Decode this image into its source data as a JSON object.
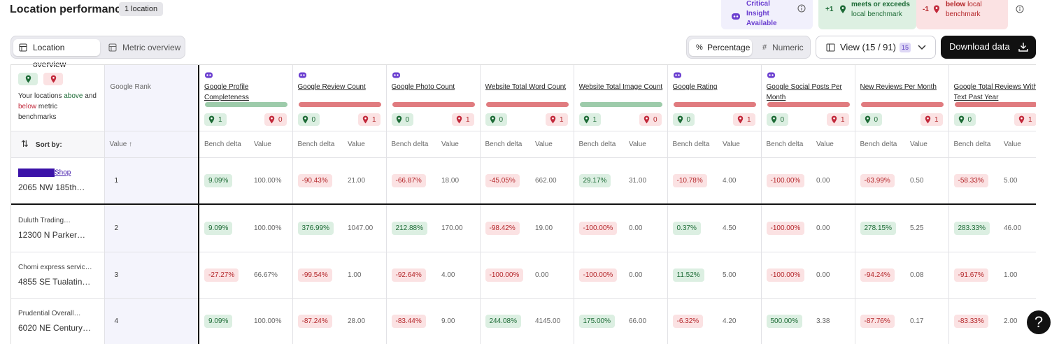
{
  "header": {
    "title": "Location performance",
    "badge": "1 location"
  },
  "legend": {
    "insight": "Critical Insight Available",
    "above": {
      "count": "+1",
      "strong": "Value/location meets or exceeds",
      "light": "local benchmark"
    },
    "below": {
      "count": "-1",
      "strong": "Value/location is below",
      "light": "local benchmark"
    }
  },
  "toolbar": {
    "tabs": [
      "Location overview",
      "Metric overview"
    ],
    "modes": [
      "Percentage",
      "Numeric"
    ],
    "view": "View (15 / 91)",
    "view_badge": "15",
    "download": "Download data"
  },
  "table": {
    "locations_header": {
      "start": "Your locations",
      "above": "above",
      "and": "and",
      "below": "below",
      "end": "metric benchmarks"
    },
    "rank_header": "Google Rank",
    "sort_label": "Sort by:",
    "value_label": "Value",
    "bench_label": "Bench delta",
    "metrics": [
      {
        "name": "Google Profile Completeness",
        "critical": true,
        "bar_color": "#9dcbaa",
        "above": 1,
        "below": 0
      },
      {
        "name": "Google Review Count",
        "critical": true,
        "bar_color": "#e07b7f",
        "above": 0,
        "below": 1
      },
      {
        "name": "Google Photo Count",
        "critical": true,
        "bar_color": "#e07b7f",
        "above": 0,
        "below": 1
      },
      {
        "name": "Website Total Word Count",
        "critical": false,
        "bar_color": "#e07b7f",
        "above": 0,
        "below": 1
      },
      {
        "name": "Website Total Image Count",
        "critical": false,
        "bar_color": "#9dcbaa",
        "above": 1,
        "below": 0
      },
      {
        "name": "Google Rating",
        "critical": true,
        "bar_color": "#e07b7f",
        "above": 0,
        "below": 1
      },
      {
        "name": "Google Social Posts Per Month",
        "critical": true,
        "bar_color": "#e07b7f",
        "above": 0,
        "below": 1
      },
      {
        "name": "New Reviews Per Month",
        "critical": false,
        "bar_color": "#e07b7f",
        "above": 0,
        "below": 1
      },
      {
        "name": "Google Total Reviews With Text Past Year",
        "critical": false,
        "bar_color": "#e07b7f",
        "above": 0,
        "below": 1
      }
    ],
    "rows": [
      {
        "name": "Shop",
        "address": "2065 NW 185th…",
        "rank": 1,
        "cells": [
          [
            "9.09%",
            "100.00%"
          ],
          [
            "-90.43%",
            "21.00"
          ],
          [
            "-66.87%",
            "18.00"
          ],
          [
            "-45.05%",
            "662.00"
          ],
          [
            "29.17%",
            "31.00"
          ],
          [
            "-10.78%",
            "4.00"
          ],
          [
            "-100.00%",
            "0.00"
          ],
          [
            "-63.99%",
            "0.50"
          ],
          [
            "-58.33%",
            "5.00"
          ]
        ]
      },
      {
        "name": "Duluth Trading…",
        "address": "12300 N Parker…",
        "rank": 2,
        "cells": [
          [
            "9.09%",
            "100.00%"
          ],
          [
            "376.99%",
            "1047.00"
          ],
          [
            "212.88%",
            "170.00"
          ],
          [
            "-98.42%",
            "19.00"
          ],
          [
            "-100.00%",
            "0.00"
          ],
          [
            "0.37%",
            "4.50"
          ],
          [
            "-100.00%",
            "0.00"
          ],
          [
            "278.15%",
            "5.25"
          ],
          [
            "283.33%",
            "46.00"
          ]
        ]
      },
      {
        "name": "Chomi express servic…",
        "address": "4855 SE Tualatin…",
        "rank": 3,
        "cells": [
          [
            "-27.27%",
            "66.67%"
          ],
          [
            "-99.54%",
            "1.00"
          ],
          [
            "-92.64%",
            "4.00"
          ],
          [
            "-100.00%",
            "0.00"
          ],
          [
            "-100.00%",
            "0.00"
          ],
          [
            "11.52%",
            "5.00"
          ],
          [
            "-100.00%",
            "0.00"
          ],
          [
            "-94.24%",
            "0.08"
          ],
          [
            "-91.67%",
            "1.00"
          ]
        ]
      },
      {
        "name": "Prudential Overall…",
        "address": "6020 NE Century…",
        "rank": 4,
        "cells": [
          [
            "9.09%",
            "100.00%"
          ],
          [
            "-87.24%",
            "28.00"
          ],
          [
            "-83.44%",
            "9.00"
          ],
          [
            "244.08%",
            "4145.00"
          ],
          [
            "175.00%",
            "66.00"
          ],
          [
            "-6.32%",
            "4.20"
          ],
          [
            "500.00%",
            "3.38"
          ],
          [
            "-87.76%",
            "0.17"
          ],
          [
            "-83.33%",
            "2.00"
          ]
        ]
      }
    ]
  }
}
